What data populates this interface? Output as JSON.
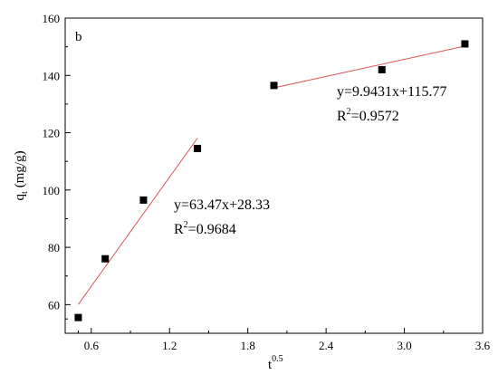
{
  "chart_data": {
    "type": "scatter",
    "panel_label": "b",
    "xlabel": {
      "base": "t",
      "sup": "0.5"
    },
    "ylabel": {
      "base": "q",
      "sub": "t",
      "unit": "(mg/g)"
    },
    "xlim": [
      0.4,
      3.6
    ],
    "ylim": [
      50,
      160
    ],
    "xticks": [
      0.6,
      1.2,
      1.8,
      2.4,
      3.0,
      3.6
    ],
    "xtick_labels": [
      "0.6",
      "1.2",
      "1.8",
      "2.4",
      "3.0",
      "3.6"
    ],
    "yticks": [
      60,
      80,
      100,
      120,
      140,
      160
    ],
    "ytick_labels": [
      "60",
      "80",
      "100",
      "120",
      "140",
      "160"
    ],
    "grid": false,
    "colors": {
      "marker": "#000000",
      "fit_line": "#d9534f",
      "axis": "#000000"
    },
    "series": [
      {
        "points": [
          {
            "x": 0.5,
            "y": 55.5
          },
          {
            "x": 0.707,
            "y": 76
          },
          {
            "x": 1.0,
            "y": 96.5
          },
          {
            "x": 1.414,
            "y": 114.5
          }
        ],
        "fit": {
          "slope": 63.47,
          "intercept": 28.33,
          "x_range": [
            0.5,
            1.414
          ],
          "equation": "y=63.47x+28.33",
          "r2_value": "=0.9684"
        }
      },
      {
        "points": [
          {
            "x": 2.0,
            "y": 136.5
          },
          {
            "x": 2.828,
            "y": 142
          },
          {
            "x": 3.464,
            "y": 151
          }
        ],
        "fit": {
          "slope": 9.9431,
          "intercept": 115.77,
          "x_range": [
            2.0,
            3.464
          ],
          "equation": "y=9.9431x+115.77",
          "r2_value": "=0.9572"
        }
      }
    ],
    "r2_symbol": {
      "base": "R",
      "sup": "2"
    }
  }
}
